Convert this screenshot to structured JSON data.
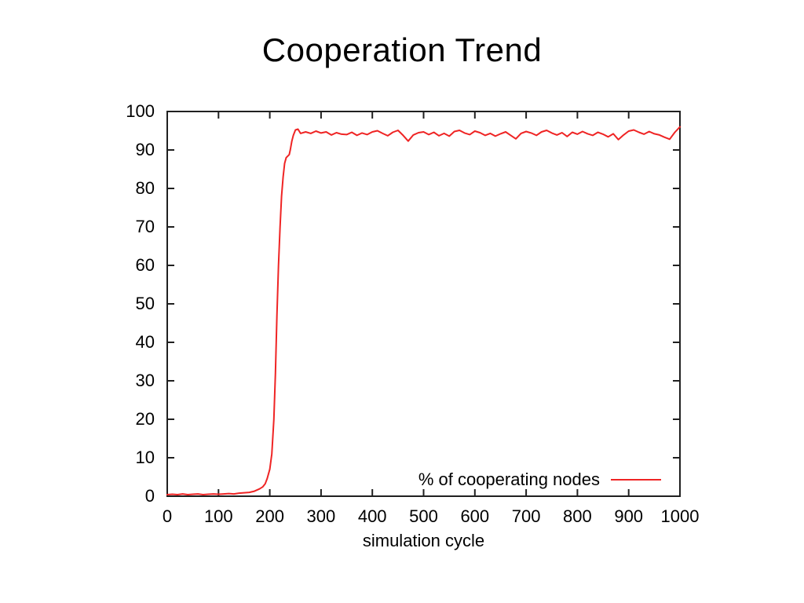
{
  "title": "Cooperation Trend",
  "colors": {
    "background": "#ffffff",
    "axis": "#202020",
    "text": "#000000",
    "line": "#ef2424"
  },
  "chart_data": {
    "type": "line",
    "title": "Cooperation Trend",
    "xlabel": "simulation cycle",
    "ylabel": "",
    "xlim": [
      0,
      1000
    ],
    "ylim": [
      0,
      100
    ],
    "xticks": [
      0,
      100,
      200,
      300,
      400,
      500,
      600,
      700,
      800,
      900,
      1000
    ],
    "yticks": [
      0,
      10,
      20,
      30,
      40,
      50,
      60,
      70,
      80,
      90,
      100
    ],
    "grid": false,
    "legend_position": "bottom-right-inside",
    "series": [
      {
        "name": "% of cooperating nodes",
        "color": "#ef2424",
        "points": [
          [
            0,
            0.4
          ],
          [
            10,
            0.5
          ],
          [
            20,
            0.4
          ],
          [
            30,
            0.6
          ],
          [
            40,
            0.4
          ],
          [
            50,
            0.5
          ],
          [
            60,
            0.6
          ],
          [
            70,
            0.4
          ],
          [
            80,
            0.5
          ],
          [
            90,
            0.6
          ],
          [
            100,
            0.5
          ],
          [
            110,
            0.6
          ],
          [
            120,
            0.7
          ],
          [
            130,
            0.6
          ],
          [
            140,
            0.8
          ],
          [
            150,
            0.9
          ],
          [
            160,
            1.0
          ],
          [
            170,
            1.3
          ],
          [
            180,
            1.9
          ],
          [
            186,
            2.4
          ],
          [
            191,
            3.2
          ],
          [
            195,
            4.6
          ],
          [
            200,
            7
          ],
          [
            204,
            11
          ],
          [
            208,
            20
          ],
          [
            211,
            32
          ],
          [
            214,
            47
          ],
          [
            217,
            60
          ],
          [
            220,
            70
          ],
          [
            223,
            78
          ],
          [
            226,
            83
          ],
          [
            229,
            86.5
          ],
          [
            232,
            88
          ],
          [
            235,
            88.4
          ],
          [
            238,
            88.8
          ],
          [
            240,
            90
          ],
          [
            243,
            92.3
          ],
          [
            246,
            93.8
          ],
          [
            250,
            95.2
          ],
          [
            255,
            95.4
          ],
          [
            260,
            94.3
          ],
          [
            270,
            94.7
          ],
          [
            280,
            94.3
          ],
          [
            290,
            94.9
          ],
          [
            300,
            94.4
          ],
          [
            310,
            94.7
          ],
          [
            320,
            93.9
          ],
          [
            330,
            94.5
          ],
          [
            340,
            94.1
          ],
          [
            350,
            94.0
          ],
          [
            360,
            94.6
          ],
          [
            370,
            93.8
          ],
          [
            380,
            94.4
          ],
          [
            390,
            94.0
          ],
          [
            400,
            94.7
          ],
          [
            410,
            95.0
          ],
          [
            420,
            94.3
          ],
          [
            430,
            93.7
          ],
          [
            440,
            94.6
          ],
          [
            450,
            95.1
          ],
          [
            460,
            93.8
          ],
          [
            470,
            92.3
          ],
          [
            480,
            93.9
          ],
          [
            490,
            94.5
          ],
          [
            500,
            94.7
          ],
          [
            510,
            94.0
          ],
          [
            520,
            94.6
          ],
          [
            530,
            93.7
          ],
          [
            540,
            94.3
          ],
          [
            550,
            93.6
          ],
          [
            560,
            94.8
          ],
          [
            570,
            95.1
          ],
          [
            580,
            94.4
          ],
          [
            590,
            94.0
          ],
          [
            600,
            94.9
          ],
          [
            610,
            94.5
          ],
          [
            620,
            93.8
          ],
          [
            630,
            94.3
          ],
          [
            640,
            93.6
          ],
          [
            650,
            94.2
          ],
          [
            660,
            94.7
          ],
          [
            670,
            93.8
          ],
          [
            680,
            92.9
          ],
          [
            690,
            94.3
          ],
          [
            700,
            94.8
          ],
          [
            710,
            94.4
          ],
          [
            720,
            93.8
          ],
          [
            730,
            94.7
          ],
          [
            740,
            95.1
          ],
          [
            750,
            94.4
          ],
          [
            760,
            93.9
          ],
          [
            770,
            94.5
          ],
          [
            780,
            93.5
          ],
          [
            790,
            94.6
          ],
          [
            800,
            94.1
          ],
          [
            810,
            94.8
          ],
          [
            820,
            94.2
          ],
          [
            830,
            93.8
          ],
          [
            840,
            94.6
          ],
          [
            850,
            94.1
          ],
          [
            860,
            93.4
          ],
          [
            870,
            94.2
          ],
          [
            880,
            92.7
          ],
          [
            890,
            93.9
          ],
          [
            900,
            94.9
          ],
          [
            910,
            95.2
          ],
          [
            920,
            94.6
          ],
          [
            930,
            94.1
          ],
          [
            940,
            94.8
          ],
          [
            950,
            94.2
          ],
          [
            960,
            93.9
          ],
          [
            970,
            93.3
          ],
          [
            980,
            92.8
          ],
          [
            990,
            94.6
          ],
          [
            1000,
            96.0
          ]
        ]
      }
    ]
  },
  "legend": {
    "label": "% of cooperating nodes"
  }
}
